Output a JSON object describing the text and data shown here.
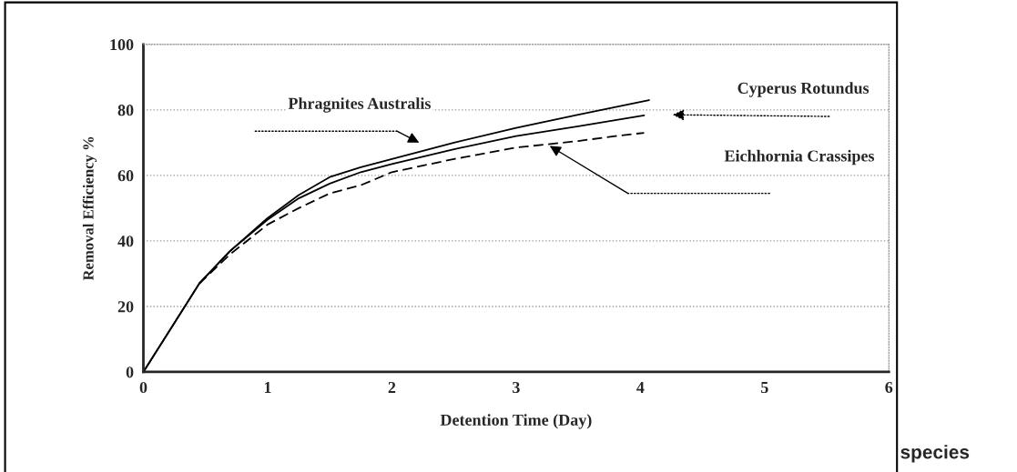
{
  "chart_data": {
    "type": "line",
    "xlabel": "Detention Time (Day)",
    "ylabel": "Removal Efficiency %",
    "xlim": [
      0,
      6
    ],
    "xticks": [
      0,
      1,
      2,
      3,
      4,
      5,
      6
    ],
    "ylim": [
      0,
      100
    ],
    "yticks": [
      0,
      20,
      40,
      60,
      80,
      100
    ],
    "grid": "y",
    "marker": "none",
    "series": [
      {
        "color": "#000000",
        "line_style": "solid",
        "x": [
          0,
          0.25,
          0.45,
          0.7,
          1,
          1.25,
          1.5,
          1.75,
          2,
          2.5,
          3,
          3.5,
          4.07
        ],
        "values": [
          0,
          15,
          27,
          37,
          47,
          54,
          59.5,
          62.5,
          65,
          70,
          74.5,
          78.5,
          83
        ]
      },
      {
        "color": "#000000",
        "line_style": "solid",
        "x": [
          0,
          0.25,
          0.45,
          0.7,
          1,
          1.25,
          1.5,
          1.75,
          2,
          2.5,
          3,
          3.5,
          4.03
        ],
        "values": [
          0,
          15,
          27,
          37,
          46.5,
          53,
          57.5,
          61,
          63.5,
          68,
          72,
          75,
          78.3
        ]
      },
      {
        "color": "#000000",
        "line_style": "dashed",
        "x": [
          0.45,
          0.7,
          1,
          1.25,
          1.5,
          1.75,
          2,
          2.5,
          3,
          3.25,
          3.5,
          3.8,
          4.03
        ],
        "values": [
          27,
          36,
          45,
          50,
          54.5,
          57,
          61,
          65,
          68.5,
          69.5,
          70.5,
          72,
          73
        ]
      }
    ],
    "annotations": [
      "Phragnites Australis",
      "Cyperus Rotundus",
      "Eichhornia Crassipes",
      "species"
    ]
  }
}
